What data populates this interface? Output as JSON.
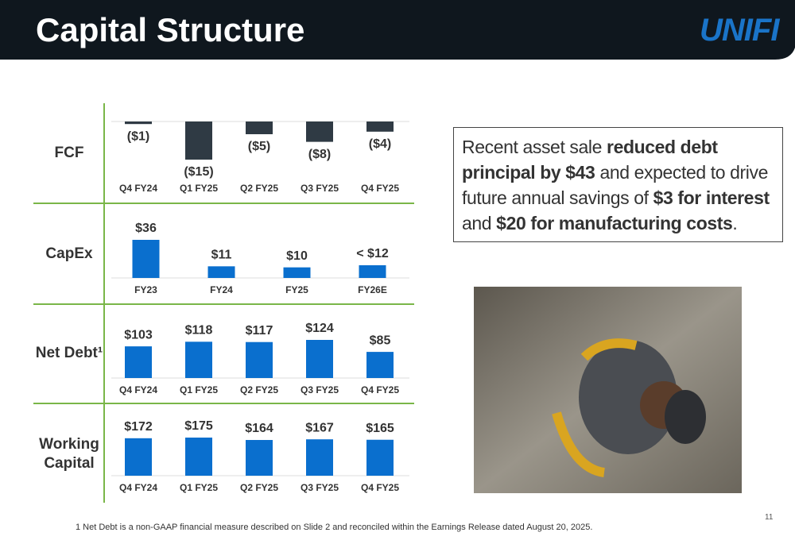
{
  "title": "Capital Structure",
  "logo": "UNIFI",
  "callout": [
    {
      "text": "Recent asset sale ",
      "bold": false
    },
    {
      "text": "reduced debt principal by $43",
      "bold": true
    },
    {
      "text": " and expected to drive future annual savings of ",
      "bold": false
    },
    {
      "text": "$3 for interest",
      "bold": true
    },
    {
      "text": " and ",
      "bold": false
    },
    {
      "text": "$20 for manufacturing costs",
      "bold": true
    },
    {
      "text": ".",
      "bold": false
    }
  ],
  "footnote": "1 Net Debt is a non-GAAP financial measure described on Slide 2 and reconciled within the Earnings Release dated August 20, 2025.",
  "page_number": "11",
  "chart_data": [
    {
      "type": "bar",
      "title": "FCF",
      "color": "#2f3a44",
      "categories": [
        "Q4 FY24",
        "Q1 FY25",
        "Q2 FY25",
        "Q3 FY25",
        "Q4 FY25"
      ],
      "values": [
        -1,
        -15,
        -5,
        -8,
        -4
      ],
      "value_labels": [
        "($1)",
        "($15)",
        "($5)",
        "($8)",
        "($4)"
      ]
    },
    {
      "type": "bar",
      "title": "CapEx",
      "color": "#0a6fce",
      "categories": [
        "FY23",
        "FY24",
        "FY25",
        "FY26E"
      ],
      "values": [
        36,
        11,
        10,
        12
      ],
      "value_labels": [
        "$36",
        "$11",
        "$10",
        "< $12"
      ]
    },
    {
      "type": "bar",
      "title": "Net Debt¹",
      "color": "#0a6fce",
      "categories": [
        "Q4 FY24",
        "Q1 FY25",
        "Q2 FY25",
        "Q3 FY25",
        "Q4 FY25"
      ],
      "values": [
        103,
        118,
        117,
        124,
        85
      ],
      "value_labels": [
        "$103",
        "$118",
        "$117",
        "$124",
        "$85"
      ]
    },
    {
      "type": "bar",
      "title": "Working Capital",
      "color": "#0a6fce",
      "categories": [
        "Q4 FY24",
        "Q1 FY25",
        "Q2 FY25",
        "Q3 FY25",
        "Q4 FY25"
      ],
      "values": [
        172,
        175,
        164,
        167,
        165
      ],
      "value_labels": [
        "$172",
        "$175",
        "$164",
        "$167",
        "$165"
      ]
    }
  ]
}
